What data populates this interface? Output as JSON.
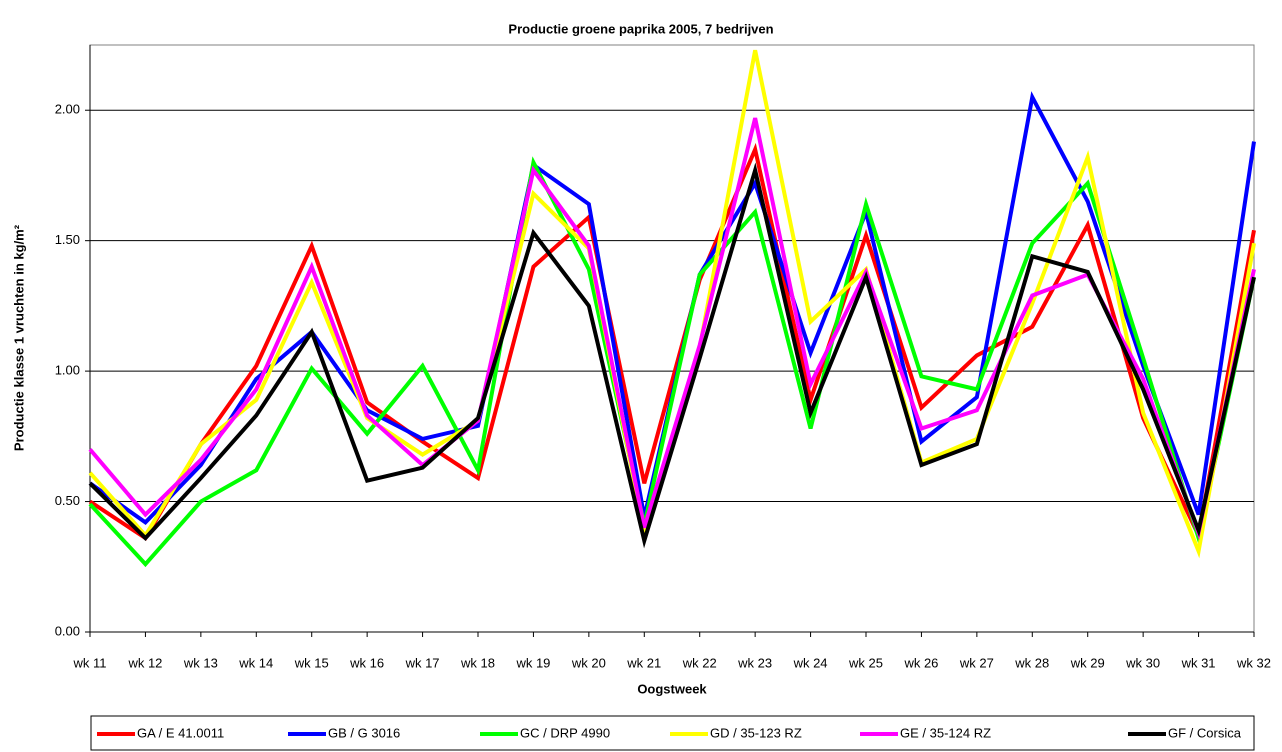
{
  "chart_data": {
    "type": "line",
    "title": "Productie groene paprika 2005, 7 bedrijven",
    "x_label": "Oogstweek",
    "y_label": "Productie klasse 1 vruchten in kg/m²",
    "categories": [
      "wk 11",
      "wk 12",
      "wk 13",
      "wk 14",
      "wk 15",
      "wk 16",
      "wk 17",
      "wk 18",
      "wk 19",
      "wk 20",
      "wk 21",
      "wk 22",
      "wk 23",
      "wk 24",
      "wk 25",
      "wk 26",
      "wk 27",
      "wk 28",
      "wk 29",
      "wk 30",
      "wk 31",
      "wk 32"
    ],
    "ylim": [
      0,
      2.25
    ],
    "yticks": [
      {
        "value": 0,
        "label": "0.00"
      },
      {
        "value": 0.5,
        "label": "0.50"
      },
      {
        "value": 1,
        "label": "1.00"
      },
      {
        "value": 1.5,
        "label": "1.50"
      },
      {
        "value": 2,
        "label": "2.00"
      }
    ],
    "grid": true,
    "legend": "bottom",
    "series": [
      {
        "name": "GA / E 41.0011",
        "color": "#ff0000",
        "values": [
          0.5,
          0.36,
          0.72,
          1.02,
          1.48,
          0.88,
          0.73,
          0.59,
          1.4,
          1.59,
          0.57,
          1.35,
          1.85,
          0.89,
          1.52,
          0.86,
          1.06,
          1.17,
          1.56,
          0.82,
          0.37,
          1.54
        ]
      },
      {
        "name": "GB / G 3016",
        "color": "#0000ff",
        "values": [
          0.57,
          0.42,
          0.64,
          0.97,
          1.15,
          0.85,
          0.74,
          0.79,
          1.79,
          1.64,
          0.44,
          1.37,
          1.72,
          1.07,
          1.61,
          0.73,
          0.9,
          2.05,
          1.65,
          1.02,
          0.45,
          1.88
        ]
      },
      {
        "name": "GC / DRP 4990",
        "color": "#00ff00",
        "values": [
          0.49,
          0.26,
          0.5,
          0.62,
          1.01,
          0.76,
          1.02,
          0.62,
          1.8,
          1.39,
          0.41,
          1.37,
          1.61,
          0.78,
          1.64,
          0.98,
          0.93,
          1.49,
          1.72,
          1.05,
          0.36,
          1.36
        ]
      },
      {
        "name": "GD / 35-123 RZ",
        "color": "#ffff00",
        "values": [
          0.61,
          0.37,
          0.72,
          0.89,
          1.34,
          0.82,
          0.68,
          0.81,
          1.68,
          1.47,
          0.38,
          1.09,
          2.23,
          1.19,
          1.39,
          0.65,
          0.74,
          1.26,
          1.82,
          0.84,
          0.31,
          1.49
        ]
      },
      {
        "name": "GE / 35-124 RZ",
        "color": "#ff00ff",
        "values": [
          0.7,
          0.45,
          0.66,
          0.93,
          1.4,
          0.83,
          0.64,
          0.81,
          1.77,
          1.48,
          0.4,
          1.1,
          1.97,
          0.95,
          1.38,
          0.78,
          0.85,
          1.29,
          1.37,
          0.97,
          0.38,
          1.39
        ]
      },
      {
        "name": "GF / Corsica",
        "color": "#000000",
        "values": [
          0.57,
          0.36,
          0.59,
          0.83,
          1.15,
          0.58,
          0.63,
          0.82,
          1.53,
          1.25,
          0.35,
          1.05,
          1.77,
          0.84,
          1.36,
          0.64,
          0.72,
          1.44,
          1.38,
          0.93,
          0.39,
          1.36
        ]
      }
    ]
  }
}
